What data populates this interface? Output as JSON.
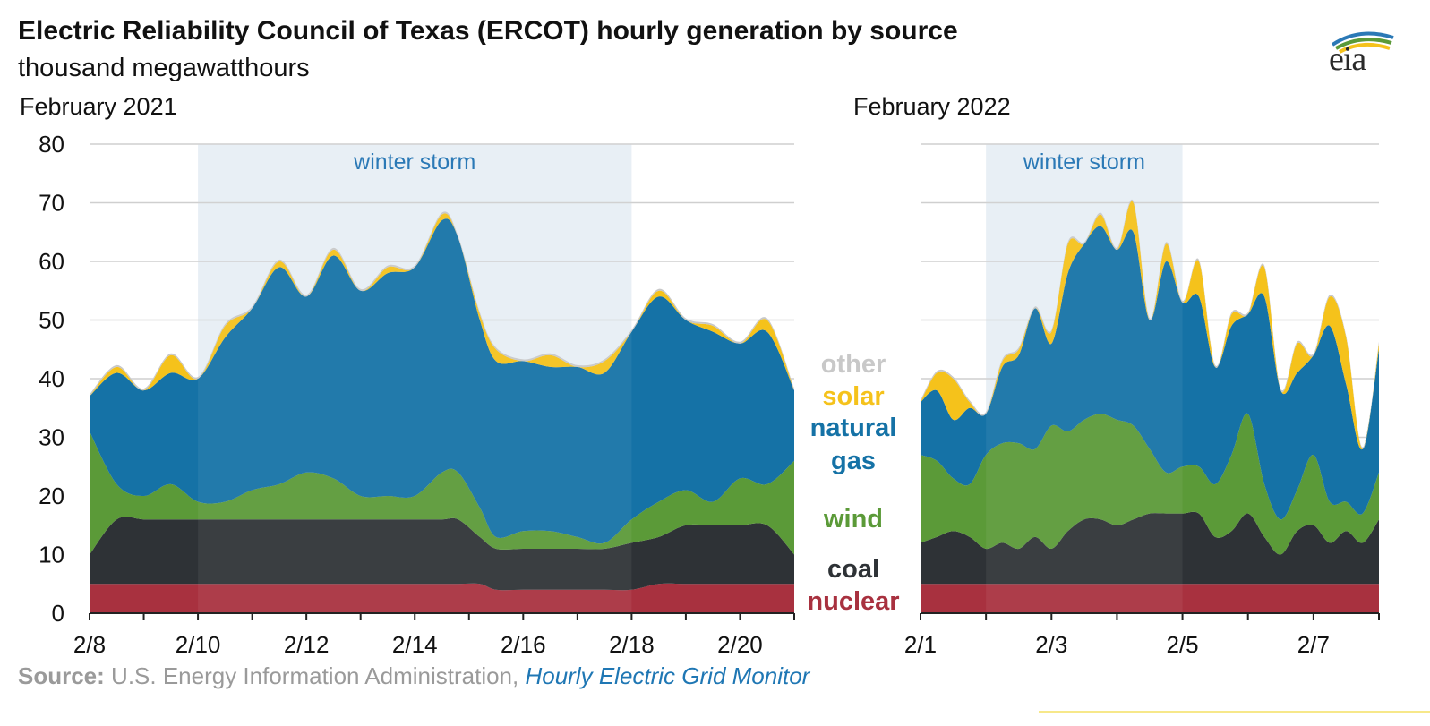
{
  "header": {
    "title": "Electric Reliability Council of Texas (ERCOT) hourly generation by source",
    "subtitle": "thousand megawatthours"
  },
  "logo": {
    "text": "eia",
    "icon": "eia-logo-swoosh-icon"
  },
  "source": {
    "label": "Source:",
    "text": " U.S. Energy Information Administration, ",
    "link": "Hourly Electric Grid Monitor"
  },
  "legend": [
    {
      "key": "other",
      "label": "other",
      "color": "#c8c8c8"
    },
    {
      "key": "solar",
      "label": "solar",
      "color": "#f5c21b"
    },
    {
      "key": "natural_gas_1",
      "label": "natural",
      "color": "#1572a6"
    },
    {
      "key": "natural_gas_2",
      "label": "gas",
      "color": "#1572a6"
    },
    {
      "key": "wind",
      "label": "wind",
      "color": "#5b9a38"
    },
    {
      "key": "coal",
      "label": "coal",
      "color": "#2e3236"
    },
    {
      "key": "nuclear",
      "label": "nuclear",
      "color": "#a8313f"
    }
  ],
  "chart_data": [
    {
      "type": "area",
      "title": "February 2021",
      "stacked": true,
      "ylim": [
        0,
        80
      ],
      "yticks": [
        0,
        10,
        20,
        30,
        40,
        50,
        60,
        70,
        80
      ],
      "xlim": [
        8,
        21
      ],
      "xticks": [
        {
          "value": 8,
          "label": "2/8"
        },
        {
          "value": 10,
          "label": "2/10"
        },
        {
          "value": 12,
          "label": "2/12"
        },
        {
          "value": 14,
          "label": "2/14"
        },
        {
          "value": 16,
          "label": "2/16"
        },
        {
          "value": 18,
          "label": "2/18"
        },
        {
          "value": 20,
          "label": "2/20"
        }
      ],
      "annotation": {
        "label": "winter storm",
        "x_start": 10,
        "x_end": 18
      },
      "grid": true,
      "x_day": [
        8,
        8.5,
        9,
        9.5,
        10,
        10.5,
        11,
        11.5,
        12,
        12.5,
        13,
        13.5,
        14,
        14.5,
        14.8,
        15.2,
        15.5,
        16,
        16.5,
        17,
        17.5,
        18,
        18.5,
        19,
        19.5,
        20,
        20.5,
        21
      ],
      "series": [
        {
          "name": "nuclear",
          "color": "#a8313f",
          "values": [
            5,
            5,
            5,
            5,
            5,
            5,
            5,
            5,
            5,
            5,
            5,
            5,
            5,
            5,
            5,
            5,
            4,
            4,
            4,
            4,
            4,
            4,
            5,
            5,
            5,
            5,
            5,
            5
          ]
        },
        {
          "name": "coal",
          "color": "#2e3236",
          "values": [
            5,
            11,
            11,
            11,
            11,
            11,
            11,
            11,
            11,
            11,
            11,
            11,
            11,
            11,
            11,
            8,
            7,
            7,
            7,
            7,
            7,
            8,
            8,
            10,
            10,
            10,
            10,
            5
          ]
        },
        {
          "name": "wind",
          "color": "#5b9a38",
          "values": [
            21,
            6,
            4,
            6,
            3,
            3,
            5,
            6,
            8,
            7,
            4,
            4,
            4,
            8,
            8,
            5,
            2,
            3,
            3,
            2,
            1,
            4,
            6,
            6,
            4,
            8,
            7,
            16
          ]
        },
        {
          "name": "natural gas",
          "color": "#1572a6",
          "values": [
            6,
            19,
            18,
            19,
            21,
            28,
            31,
            37,
            30,
            38,
            35,
            38,
            39,
            43,
            40,
            32,
            30,
            29,
            28,
            29,
            29,
            32,
            35,
            29,
            29,
            23,
            26,
            12
          ]
        },
        {
          "name": "solar",
          "color": "#f5c21b",
          "values": [
            0,
            1,
            0,
            3,
            0,
            2,
            0,
            1,
            0,
            1,
            0,
            1,
            0,
            1,
            0,
            1,
            2,
            0,
            2,
            0,
            2,
            0,
            1,
            0,
            1,
            0,
            2,
            0
          ]
        },
        {
          "name": "other",
          "color": "#c8c8c8",
          "values": [
            0.3,
            0.3,
            0.3,
            0.3,
            0.3,
            0.3,
            0.3,
            0.3,
            0.3,
            0.3,
            0.3,
            0.3,
            0.3,
            0.3,
            0.3,
            0.3,
            0.3,
            0.3,
            0.3,
            0.3,
            0.3,
            0.3,
            0.3,
            0.3,
            0.3,
            0.3,
            0.3,
            0.3
          ]
        }
      ]
    },
    {
      "type": "area",
      "title": "February 2022",
      "stacked": true,
      "ylim": [
        0,
        80
      ],
      "xlim": [
        1,
        8
      ],
      "xticks": [
        {
          "value": 1,
          "label": "2/1"
        },
        {
          "value": 3,
          "label": "2/3"
        },
        {
          "value": 5,
          "label": "2/5"
        },
        {
          "value": 7,
          "label": "2/7"
        }
      ],
      "annotation": {
        "label": "winter storm",
        "x_start": 2,
        "x_end": 5
      },
      "grid": true,
      "x_day": [
        1,
        1.25,
        1.5,
        1.75,
        2,
        2.25,
        2.5,
        2.75,
        3,
        3.25,
        3.5,
        3.75,
        4,
        4.25,
        4.5,
        4.75,
        5,
        5.25,
        5.5,
        5.75,
        6,
        6.25,
        6.5,
        6.75,
        7,
        7.25,
        7.5,
        7.75,
        8
      ],
      "series": [
        {
          "name": "nuclear",
          "color": "#a8313f",
          "values": [
            5,
            5,
            5,
            5,
            5,
            5,
            5,
            5,
            5,
            5,
            5,
            5,
            5,
            5,
            5,
            5,
            5,
            5,
            5,
            5,
            5,
            5,
            5,
            5,
            5,
            5,
            5,
            5,
            5
          ]
        },
        {
          "name": "coal",
          "color": "#2e3236",
          "values": [
            7,
            8,
            9,
            8,
            6,
            7,
            6,
            8,
            6,
            9,
            11,
            11,
            10,
            11,
            12,
            12,
            12,
            12,
            8,
            9,
            12,
            8,
            5,
            9,
            10,
            7,
            9,
            7,
            11
          ]
        },
        {
          "name": "wind",
          "color": "#5b9a38",
          "values": [
            15,
            13,
            9,
            9,
            16,
            17,
            18,
            15,
            21,
            17,
            17,
            18,
            18,
            16,
            11,
            7,
            8,
            8,
            9,
            13,
            17,
            9,
            6,
            7,
            12,
            7,
            5,
            5,
            8
          ]
        },
        {
          "name": "natural gas",
          "color": "#1572a6",
          "values": [
            9,
            12,
            10,
            13,
            7,
            13,
            15,
            24,
            14,
            27,
            30,
            32,
            29,
            33,
            22,
            36,
            28,
            29,
            20,
            22,
            17,
            32,
            22,
            20,
            17,
            30,
            20,
            11,
            21
          ]
        },
        {
          "name": "solar",
          "color": "#f5c21b",
          "values": [
            0,
            3,
            7,
            1,
            0,
            1,
            1,
            0,
            2,
            5,
            0,
            2,
            0,
            5,
            0,
            3,
            0,
            6,
            0,
            2,
            0,
            5,
            0,
            5,
            0,
            5,
            8,
            0,
            1
          ]
        },
        {
          "name": "other",
          "color": "#c8c8c8",
          "values": [
            0.3,
            0.3,
            0.3,
            0.3,
            0.3,
            0.3,
            0.3,
            0.3,
            0.3,
            0.3,
            0.3,
            0.3,
            0.3,
            0.3,
            0.3,
            0.3,
            0.3,
            0.3,
            0.3,
            0.3,
            0.3,
            0.3,
            0.3,
            0.3,
            0.3,
            0.3,
            0.3,
            0.3,
            0.3
          ]
        }
      ]
    }
  ]
}
